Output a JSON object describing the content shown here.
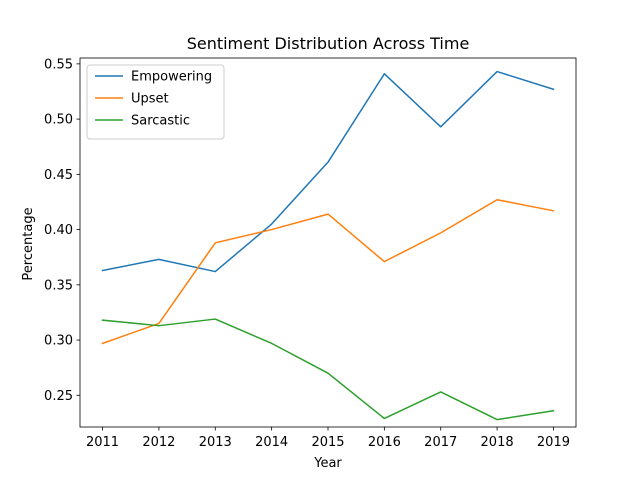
{
  "chart_data": {
    "type": "line",
    "title": "Sentiment Distribution Across Time",
    "xlabel": "Year",
    "ylabel": "Percentage",
    "x": [
      2011,
      2012,
      2013,
      2014,
      2015,
      2016,
      2017,
      2018,
      2019
    ],
    "x_tick_labels": [
      "2011",
      "2012",
      "2013",
      "2014",
      "2015",
      "2016",
      "2017",
      "2018",
      "2019"
    ],
    "y_ticks": [
      0.25,
      0.3,
      0.35,
      0.4,
      0.45,
      0.5,
      0.55
    ],
    "y_tick_labels": [
      "0.25",
      "0.30",
      "0.35",
      "0.40",
      "0.45",
      "0.50",
      "0.55"
    ],
    "xlim": [
      2010.6,
      2019.4
    ],
    "ylim": [
      0.2213,
      0.5553
    ],
    "grid": false,
    "legend_position": "top-left",
    "series": [
      {
        "name": "Empowering",
        "color": "#1f77b4",
        "values": [
          0.363,
          0.373,
          0.362,
          0.405,
          0.461,
          0.541,
          0.493,
          0.543,
          0.527
        ]
      },
      {
        "name": "Upset",
        "color": "#ff7f0e",
        "values": [
          0.297,
          0.315,
          0.388,
          0.4,
          0.414,
          0.371,
          0.397,
          0.427,
          0.417
        ]
      },
      {
        "name": "Sarcastic",
        "color": "#2ca02c",
        "values": [
          0.318,
          0.313,
          0.319,
          0.297,
          0.27,
          0.229,
          0.253,
          0.228,
          0.236
        ]
      }
    ]
  }
}
